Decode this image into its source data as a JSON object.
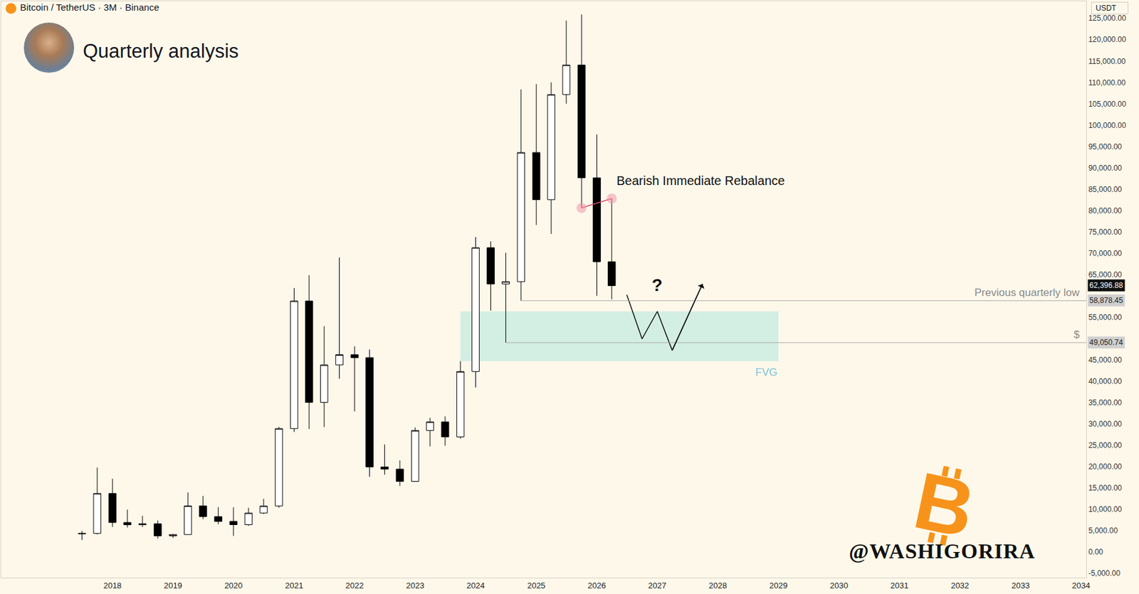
{
  "chart_data": {
    "type": "candlestick",
    "title": "Quarterly analysis",
    "subtitle": "Bitcoin / TetherUS · 3M · Binance",
    "currency": "USDT",
    "color": "#000000",
    "x": [
      "2017-07",
      "2017-10",
      "2018-01",
      "2018-04",
      "2018-07",
      "2018-10",
      "2019-01",
      "2019-04",
      "2019-07",
      "2019-10",
      "2020-01",
      "2020-04",
      "2020-07",
      "2020-10",
      "2021-01",
      "2021-04",
      "2021-07",
      "2021-10",
      "2022-01",
      "2022-04",
      "2022-07",
      "2022-10",
      "2023-01",
      "2023-04",
      "2023-07",
      "2023-10",
      "2024-01",
      "2024-04",
      "2024-07",
      "2024-10",
      "2025-01",
      "2025-04",
      "2025-07",
      "2025-10",
      "2026-01",
      "2026-04"
    ],
    "open": [
      4261,
      4378,
      13716,
      6926,
      6391,
      6626,
      3797,
      4103,
      10818,
      8293,
      7195,
      6410,
      9135,
      10777,
      28923,
      58796,
      35045,
      43824,
      46216,
      45539,
      19942,
      19423,
      16542,
      28478,
      30472,
      26967,
      42283,
      71280,
      62772,
      63327,
      93576,
      82534,
      107135,
      114049,
      87648,
      68000
    ],
    "high": [
      4939,
      19798,
      17176,
      9948,
      8488,
      7400,
      4236,
      13970,
      13146,
      10540,
      10500,
      10380,
      12468,
      29300,
      61844,
      64854,
      52920,
      69000,
      48190,
      47445,
      25211,
      21473,
      29184,
      31431,
      31805,
      44729,
      73777,
      72777,
      70079,
      108353,
      109588,
      110000,
      124474,
      125900,
      97800,
      82800
    ],
    "low": [
      2817,
      4110,
      5880,
      5755,
      5880,
      3156,
      3349,
      4067,
      7710,
      6526,
      3782,
      6150,
      8893,
      10374,
      28130,
      28805,
      29278,
      40596,
      32950,
      17622,
      18125,
      15476,
      16499,
      24750,
      24901,
      26538,
      38555,
      56552,
      49050.74,
      58878.45,
      76606,
      74508,
      105000,
      80600,
      60000,
      59200
    ],
    "close": [
      4378,
      13716,
      6926,
      6391,
      6626,
      3797,
      4103,
      10818,
      8293,
      7195,
      6410,
      9135,
      10777,
      28923,
      58796,
      35045,
      43824,
      46216,
      45539,
      19942,
      19423,
      16542,
      28478,
      30472,
      26967,
      42283,
      71280,
      62772,
      63327,
      93576,
      82534,
      107135,
      114049,
      87648,
      68000,
      62396.88
    ],
    "xlim": [
      "2016-03",
      "2034-02"
    ],
    "xticks": [
      "2018",
      "2019",
      "2020",
      "2021",
      "2022",
      "2023",
      "2024",
      "2025",
      "2026",
      "2027",
      "2028",
      "2029",
      "2030",
      "2031",
      "2032",
      "2033",
      "2034"
    ],
    "ylim": [
      -6000,
      129000
    ],
    "yticks": [
      {
        "value": -5000,
        "label": "-5,000.00"
      },
      {
        "value": 0,
        "label": "0.00"
      },
      {
        "value": 5000,
        "label": "5,000.00"
      },
      {
        "value": 10000,
        "label": "10,000.00"
      },
      {
        "value": 15000,
        "label": "15,000.00"
      },
      {
        "value": 20000,
        "label": "20,000.00"
      },
      {
        "value": 25000,
        "label": "25,000.00"
      },
      {
        "value": 30000,
        "label": "30,000.00"
      },
      {
        "value": 35000,
        "label": "35,000.00"
      },
      {
        "value": 40000,
        "label": "40,000.00"
      },
      {
        "value": 45000,
        "label": "45,000.00"
      },
      {
        "value": 55000,
        "label": "55,000.00"
      },
      {
        "value": 65000,
        "label": "65,000.00"
      },
      {
        "value": 70000,
        "label": "70,000.00"
      },
      {
        "value": 75000,
        "label": "75,000.00"
      },
      {
        "value": 80000,
        "label": "80,000.00"
      },
      {
        "value": 85000,
        "label": "85,000.00"
      },
      {
        "value": 90000,
        "label": "90,000.00"
      },
      {
        "value": 95000,
        "label": "95,000.00"
      },
      {
        "value": 100000,
        "label": "100,000.00"
      },
      {
        "value": 105000,
        "label": "105,000.00"
      },
      {
        "value": 110000,
        "label": "110,000.00"
      },
      {
        "value": 115000,
        "label": "115,000.00"
      },
      {
        "value": 120000,
        "label": "120,000.00"
      },
      {
        "value": 125000,
        "label": "125,000.00"
      }
    ],
    "grid": false,
    "last_price": {
      "value": 62396.88,
      "label": "62,396.88"
    },
    "levels": [
      {
        "name": "Previous quarterly low",
        "value": 58878.45,
        "label": "58,878.45",
        "start": "2024-10"
      },
      {
        "name": "$",
        "value": 49050.74,
        "label": "49,050.74",
        "start": "2024-07"
      }
    ],
    "zone": {
      "name": "FVG",
      "x": [
        "2023-10",
        "2029-01"
      ],
      "y": [
        44700,
        56350
      ],
      "color": "#d3eee3"
    },
    "rebalance": {
      "text": "Bearish Immediate Rebalance",
      "x": [
        "2025-10",
        "2026-04"
      ],
      "y": [
        80600,
        82800
      ],
      "color": "#d9486a"
    },
    "projection": {
      "text": "?",
      "x": [
        "2026-07",
        "2026-10",
        "2027-01",
        "2027-04",
        "2027-10"
      ],
      "y": [
        60260,
        49930,
        56360,
        47230,
        62800
      ]
    },
    "watermark": "@WASHIGORIRA",
    "logo": "B"
  }
}
